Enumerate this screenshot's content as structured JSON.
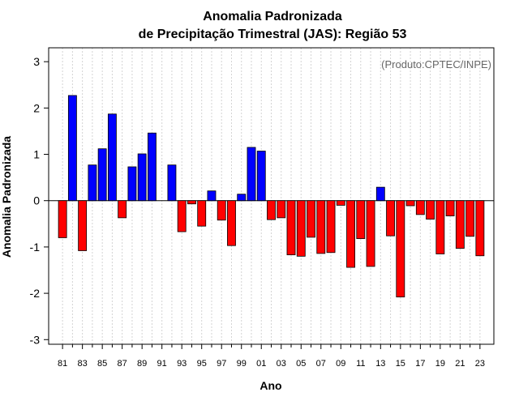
{
  "chart_data": {
    "type": "bar",
    "title": "Anomalia Padronizada",
    "subtitle": "de Precipitação Trimestral (JAS): Região 53",
    "xlabel": "Ano",
    "ylabel": "Anomalia Padronizada",
    "annotation": "(Produto:CPTEC/INPE)",
    "ylim": [
      -3.1,
      3.3
    ],
    "yticks": [
      -3,
      -2,
      -1,
      0,
      1,
      2,
      3
    ],
    "xtick_labels": [
      "81",
      "83",
      "85",
      "87",
      "89",
      "91",
      "93",
      "95",
      "97",
      "99",
      "01",
      "03",
      "05",
      "07",
      "09",
      "11",
      "13",
      "15",
      "17",
      "19",
      "21",
      "23"
    ],
    "categories": [
      "81",
      "82",
      "83",
      "84",
      "85",
      "86",
      "87",
      "88",
      "89",
      "90",
      "91",
      "92",
      "93",
      "94",
      "95",
      "96",
      "97",
      "98",
      "99",
      "00",
      "01",
      "02",
      "03",
      "04",
      "05",
      "06",
      "07",
      "08",
      "09",
      "10",
      "11",
      "12",
      "13",
      "14",
      "15",
      "16",
      "17",
      "18",
      "19",
      "20",
      "21",
      "22",
      "23"
    ],
    "values": [
      -0.8,
      2.27,
      -1.08,
      0.77,
      1.12,
      1.87,
      -0.37,
      0.73,
      1.01,
      1.46,
      0.0,
      0.77,
      -0.67,
      -0.07,
      -0.55,
      0.21,
      -0.42,
      -0.97,
      0.14,
      1.15,
      1.07,
      -0.41,
      -0.37,
      -1.17,
      -1.2,
      -0.79,
      -1.14,
      -1.12,
      -0.1,
      -1.44,
      -0.82,
      -1.42,
      0.29,
      -0.76,
      -2.08,
      -0.11,
      -0.3,
      -0.4,
      -1.15,
      -0.33,
      -1.03,
      -0.77,
      -1.19
    ],
    "colors": {
      "positive": "#0000ff",
      "negative": "#ff0000",
      "grid": "#d3d3d3"
    },
    "grid": true
  }
}
